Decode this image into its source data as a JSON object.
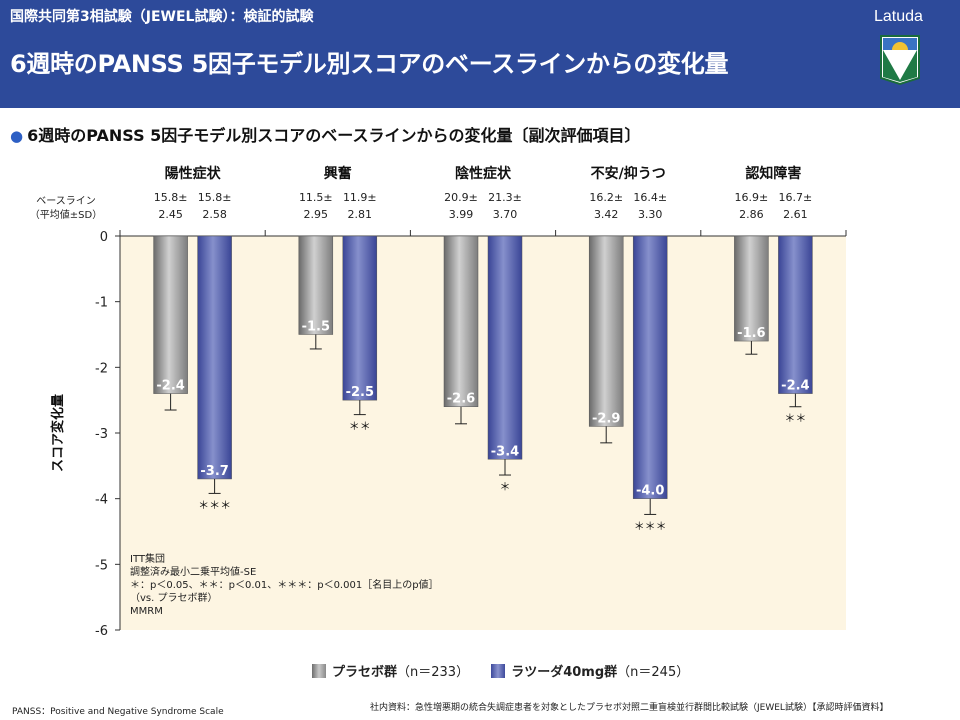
{
  "header": {
    "supertitle": "国際共同第3相試験（JEWEL試験）：検証的試験",
    "title": "6週時のPANSS  5因子モデル別スコアのベースラインからの変化量",
    "brand": "Latuda"
  },
  "subtitle": {
    "bullet": "●",
    "text": "6週時のPANSS 5因子モデル別スコアのベースラインからの変化量〔副次評価項目〕"
  },
  "colors": {
    "header_bg": "#2d4a9a",
    "plot_bg": "#fdf5e2",
    "placebo": "#9a9a9a",
    "latuda": "#4f5aa8"
  },
  "chart_data": {
    "type": "bar",
    "categories": [
      "陽性症状",
      "興奮",
      "陰性症状",
      "不安/抑うつ",
      "認知障害"
    ],
    "ylabel": "スコア変化量",
    "ylim": [
      -6,
      0
    ],
    "yticks": [
      0,
      -1,
      -2,
      -3,
      -4,
      -5,
      -6
    ],
    "baseline_label": [
      "ベースライン",
      "（平均値±SD）"
    ],
    "series": [
      {
        "name": "プラセボ群",
        "n_label": "（n＝233）",
        "values": [
          -2.4,
          -1.5,
          -2.6,
          -2.9,
          -1.6
        ],
        "value_labels": [
          "-2.4",
          "-1.5",
          "-2.6",
          "-2.9",
          "-1.6"
        ],
        "se": [
          0.25,
          0.22,
          0.26,
          0.25,
          0.2
        ],
        "baseline_mean": [
          "15.8±",
          "11.5±",
          "20.9±",
          "16.2±",
          "16.9±"
        ],
        "baseline_sd": [
          "2.45",
          "2.95",
          "3.99",
          "3.42",
          "2.86"
        ],
        "significance": [
          "",
          "",
          "",
          "",
          ""
        ]
      },
      {
        "name": "ラツーダ40mg群",
        "n_label": "（n＝245）",
        "values": [
          -3.7,
          -2.5,
          -3.4,
          -4.0,
          -2.4
        ],
        "value_labels": [
          "-3.7",
          "-2.5",
          "-3.4",
          "-4.0",
          "-2.4"
        ],
        "se": [
          0.22,
          0.22,
          0.24,
          0.24,
          0.2
        ],
        "baseline_mean": [
          "15.8±",
          "11.9±",
          "21.3±",
          "16.4±",
          "16.7±"
        ],
        "baseline_sd": [
          "2.58",
          "2.81",
          "3.70",
          "3.30",
          "2.61"
        ],
        "significance": [
          "＊＊＊",
          "＊＊",
          "＊",
          "＊＊＊",
          "＊＊"
        ]
      }
    ]
  },
  "notes": {
    "line1": "ITT集団",
    "line2": "調整済み最小二乗平均値-SE",
    "line3": "＊：p＜0.05、＊＊：p＜0.01、＊＊＊：p＜0.001［名目上のp値］",
    "line4": "（vs. プラセボ群）",
    "line5": "MMRM"
  },
  "footer": {
    "left": "PANSS：Positive and Negative Syndrome Scale",
    "right": "社内資料：急性増悪期の統合失調症患者を対象としたプラセボ対照二重盲検並行群間比較試験（JEWEL試験）【承認時評価資料】"
  }
}
